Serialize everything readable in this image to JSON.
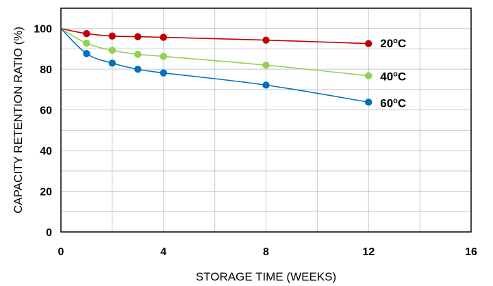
{
  "chart_data": {
    "type": "line",
    "title": "",
    "xlabel": "STORAGE TIME (WEEKS)",
    "ylabel": "CAPACITY RETENTION RATIO (%)",
    "xlim": [
      0,
      16
    ],
    "ylim": [
      0,
      110
    ],
    "x_ticks": [
      "0",
      "4",
      "8",
      "12",
      "16"
    ],
    "y_ticks": [
      "0",
      "20",
      "40",
      "60",
      "80",
      "100"
    ],
    "grid": true,
    "legend": "inline labels at line ends",
    "series": [
      {
        "name": "20ºC",
        "label_main": "20",
        "label_sup": "o",
        "label_unit": "C",
        "color": "#c00000",
        "x": [
          0,
          1,
          2,
          3,
          4,
          8,
          12
        ],
        "y": [
          100,
          97.5,
          96.3,
          96,
          95.7,
          94.3,
          92.6
        ]
      },
      {
        "name": "40ºC",
        "label_main": "40",
        "label_sup": "o",
        "label_unit": "C",
        "color": "#92d050",
        "x": [
          0,
          1,
          2,
          3,
          4,
          8,
          12
        ],
        "y": [
          100,
          92.8,
          89.3,
          87.3,
          86.3,
          82,
          76.8
        ]
      },
      {
        "name": "60ºC",
        "label_main": "60",
        "label_sup": "o",
        "label_unit": "C",
        "color": "#0070c0",
        "x": [
          0,
          1,
          2,
          3,
          4,
          8,
          12
        ],
        "y": [
          100,
          87.7,
          83,
          80,
          78.2,
          72.2,
          63.8
        ]
      }
    ]
  }
}
